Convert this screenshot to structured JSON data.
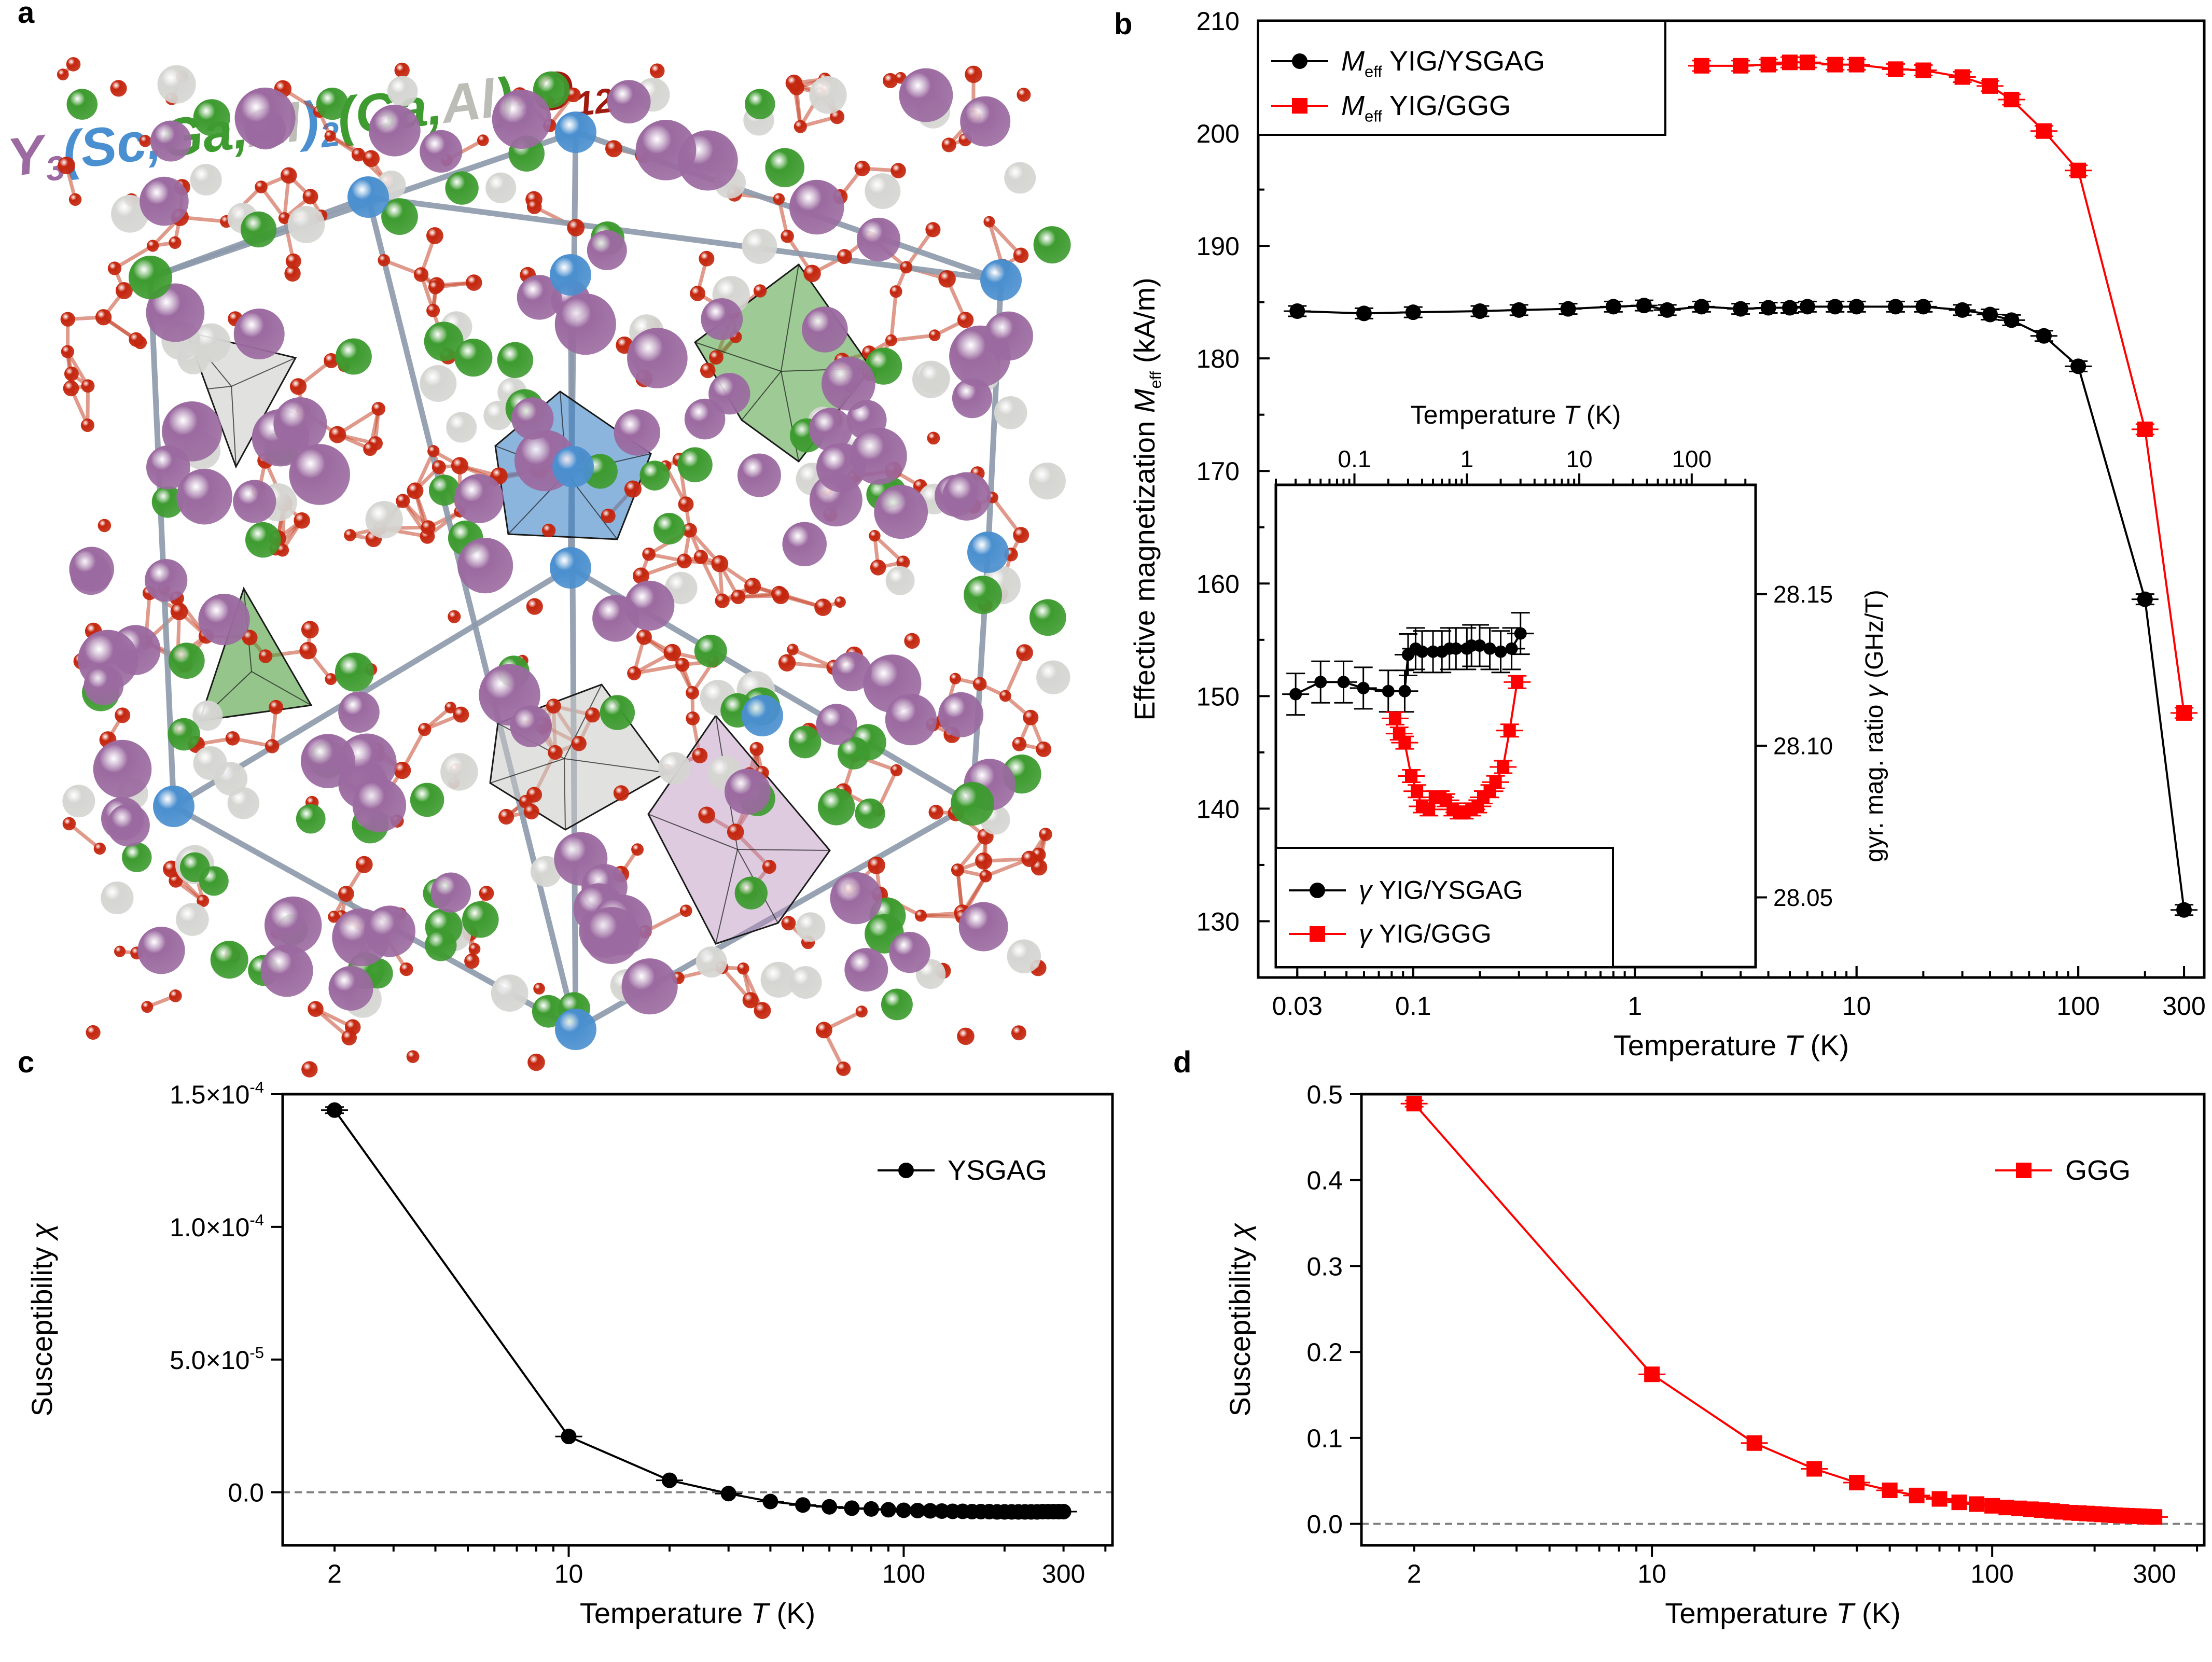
{
  "panel_labels": {
    "a": "a",
    "b": "b",
    "c": "c",
    "d": "d"
  },
  "panel_a": {
    "formula": {
      "y": "Y",
      "y_sub": "3",
      "sc_group": "(Sc,",
      "ga1": "Ga",
      "comma1": ",",
      "al1": "Al",
      "close1": ")",
      "sub2": "2",
      "ga2_open": "(",
      "ga2": "Ga",
      "comma2": ",",
      "al2": "Al",
      "close2": ")",
      "sub3": "3",
      "o": "O",
      "sub12": "12"
    },
    "colors": {
      "Y": "#9b6aa0",
      "Sc": "#4a8fcf",
      "Ga": "#3d9b2f",
      "Al": "#d5d5d2",
      "O": "#c4260e",
      "frame": "#8c9aab"
    }
  },
  "chart_data": [
    {
      "id": "b-main",
      "type": "line",
      "title": "",
      "xlabel": "Temperature T (K)",
      "ylabel": "Effective magnetization M_eff (kA/m)",
      "xscale": "log",
      "xlim": [
        0.02,
        370
      ],
      "ylim": [
        125,
        210
      ],
      "xticks": [
        0.03,
        0.1,
        1,
        10,
        100,
        300
      ],
      "xtick_labels": [
        "0.03",
        "0.1",
        "1",
        "10",
        "100",
        "300"
      ],
      "yticks": [
        130,
        140,
        150,
        160,
        170,
        180,
        190,
        200,
        210
      ],
      "ytick_labels": [
        "130",
        "140",
        "150",
        "160",
        "170",
        "180",
        "190",
        "200",
        "210"
      ],
      "legend_position": "top-left",
      "series": [
        {
          "name": "M_eff YIG/YSGAG",
          "legend_main": "M",
          "legend_sub": "eff",
          "legend_rest": " YIG/YSGAG",
          "color": "#000000",
          "marker": "circle",
          "x": [
            0.03,
            0.06,
            0.1,
            0.2,
            0.3,
            0.5,
            0.8,
            1.1,
            1.4,
            2,
            3,
            4,
            5,
            6,
            8,
            10,
            15,
            20,
            30,
            40,
            50,
            70,
            100,
            200,
            300
          ],
          "y": [
            184.2,
            184.0,
            184.1,
            184.2,
            184.3,
            184.4,
            184.6,
            184.7,
            184.3,
            184.6,
            184.4,
            184.5,
            184.5,
            184.6,
            184.6,
            184.6,
            184.6,
            184.6,
            184.3,
            183.9,
            183.4,
            182.0,
            179.3,
            158.6,
            131.0
          ]
        },
        {
          "name": "M_eff YIG/GGG",
          "legend_main": "M",
          "legend_sub": "eff",
          "legend_rest": " YIG/GGG",
          "color": "#ff0000",
          "marker": "square",
          "x": [
            2,
            3,
            4,
            5,
            6,
            8,
            10,
            15,
            20,
            30,
            40,
            50,
            70,
            100,
            200,
            300
          ],
          "y": [
            206.0,
            206.0,
            206.1,
            206.3,
            206.3,
            206.1,
            206.1,
            205.7,
            205.6,
            205.0,
            204.2,
            203.0,
            200.2,
            196.7,
            173.7,
            148.5
          ]
        }
      ]
    },
    {
      "id": "b-inset",
      "type": "line",
      "title": "",
      "xlabel": "Temperature T (K)",
      "ylabel": "gyr. mag. ratio γ (GHz/T)",
      "xscale": "log",
      "xlim": [
        0.02,
        370
      ],
      "ylim": [
        28.027,
        28.186
      ],
      "xticks": [
        0.1,
        1,
        10,
        100
      ],
      "xtick_labels": [
        "0.1",
        "1",
        "10",
        "100"
      ],
      "yticks": [
        28.05,
        28.1,
        28.15
      ],
      "ytick_labels": [
        "28.05",
        "28.10",
        "28.15"
      ],
      "legend_position": "bottom-left",
      "series": [
        {
          "name": "γ YIG/YSGAG",
          "legend_main": "γ",
          "legend_rest": " YIG/YSGAG",
          "color": "#000000",
          "marker": "circle",
          "x": [
            0.03,
            0.05,
            0.08,
            0.12,
            0.2,
            0.28,
            0.3,
            0.35,
            0.4,
            0.5,
            0.6,
            0.7,
            0.8,
            1.0,
            1.1,
            1.3,
            1.6,
            2.0,
            2.5,
            3.0
          ],
          "y": [
            28.117,
            28.121,
            28.121,
            28.119,
            28.118,
            28.118,
            28.13,
            28.132,
            28.131,
            28.131,
            28.131,
            28.132,
            28.132,
            28.132,
            28.133,
            28.133,
            28.132,
            28.131,
            28.132,
            28.137
          ]
        },
        {
          "name": "γ YIG/GGG",
          "legend_main": "γ",
          "legend_rest": " YIG/GGG",
          "color": "#ff0000",
          "marker": "square",
          "x": [
            0.23,
            0.25,
            0.28,
            0.32,
            0.36,
            0.4,
            0.46,
            0.52,
            0.58,
            0.65,
            0.75,
            0.85,
            0.95,
            1.1,
            1.25,
            1.4,
            1.6,
            1.8,
            2.1,
            2.4,
            2.8
          ],
          "y": [
            28.109,
            28.104,
            28.101,
            28.09,
            28.085,
            28.08,
            28.079,
            28.083,
            28.083,
            28.082,
            28.079,
            28.078,
            28.078,
            28.079,
            28.08,
            28.083,
            28.085,
            28.088,
            28.093,
            28.105,
            28.121
          ]
        }
      ]
    },
    {
      "id": "c",
      "type": "line",
      "title": "",
      "xlabel": "Temperature T (K)",
      "ylabel": "Susceptibility χ",
      "xscale": "log",
      "xlim": [
        1.4,
        420
      ],
      "ylim": [
        -2e-05,
        0.00015
      ],
      "xticks": [
        2,
        10,
        100,
        300
      ],
      "xtick_labels": [
        "2",
        "10",
        "100",
        "300"
      ],
      "yticks": [
        0,
        5e-05,
        0.0001,
        0.00015
      ],
      "ytick_labels": [
        "0.0",
        "5.0×10-5",
        "1.0×10-4",
        "1.5×10-4"
      ],
      "zero_line": true,
      "legend_position": "top-right",
      "series": [
        {
          "name": "YSGAG",
          "color": "#000000",
          "marker": "circle",
          "x": [
            2,
            10,
            20,
            30,
            40,
            50,
            60,
            70,
            80,
            90,
            100,
            110,
            120,
            130,
            140,
            150,
            160,
            170,
            180,
            190,
            200,
            210,
            220,
            230,
            240,
            250,
            260,
            270,
            280,
            290,
            300
          ],
          "y": [
            0.000144,
            2.1e-05,
            4.5e-06,
            -5e-07,
            -3.5e-06,
            -4.8e-06,
            -5.5e-06,
            -6e-06,
            -6.3e-06,
            -6.6e-06,
            -6.8e-06,
            -6.9e-06,
            -7e-06,
            -7.1e-06,
            -7.2e-06,
            -7.2e-06,
            -7.3e-06,
            -7.3e-06,
            -7.3e-06,
            -7.4e-06,
            -7.4e-06,
            -7.4e-06,
            -7.4e-06,
            -7.4e-06,
            -7.4e-06,
            -7.4e-06,
            -7.3e-06,
            -7.3e-06,
            -7.3e-06,
            -7.3e-06,
            -7.3e-06
          ]
        }
      ]
    },
    {
      "id": "d",
      "type": "line",
      "title": "",
      "xlabel": "Temperature T (K)",
      "ylabel": "Susceptibility χ",
      "xscale": "log",
      "xlim": [
        1.4,
        420
      ],
      "ylim": [
        -0.025,
        0.5
      ],
      "xticks": [
        2,
        10,
        100,
        300
      ],
      "xtick_labels": [
        "2",
        "10",
        "100",
        "300"
      ],
      "yticks": [
        0,
        0.1,
        0.2,
        0.3,
        0.4,
        0.5
      ],
      "ytick_labels": [
        "0.0",
        "0.1",
        "0.2",
        "0.3",
        "0.4",
        "0.5"
      ],
      "zero_line": true,
      "legend_position": "top-right",
      "series": [
        {
          "name": "GGG",
          "color": "#ff0000",
          "marker": "square",
          "x": [
            2,
            10,
            20,
            30,
            40,
            50,
            60,
            70,
            80,
            90,
            100,
            110,
            120,
            130,
            140,
            150,
            160,
            170,
            180,
            190,
            200,
            210,
            220,
            230,
            240,
            250,
            260,
            270,
            280,
            290,
            300
          ],
          "y": [
            0.489,
            0.174,
            0.094,
            0.064,
            0.048,
            0.039,
            0.033,
            0.029,
            0.025,
            0.023,
            0.021,
            0.019,
            0.018,
            0.017,
            0.016,
            0.015,
            0.014,
            0.013,
            0.0125,
            0.012,
            0.0115,
            0.011,
            0.0105,
            0.01,
            0.0097,
            0.0094,
            0.0091,
            0.0088,
            0.0085,
            0.0082,
            0.008
          ]
        }
      ]
    }
  ]
}
